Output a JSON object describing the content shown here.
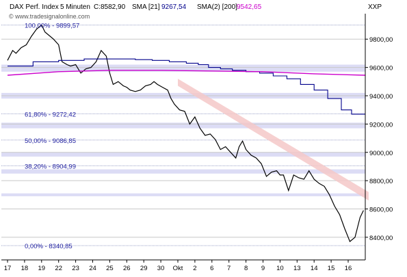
{
  "header": {
    "instrument": "DAX Perf. Index",
    "interval": "5 Minuten",
    "close_label": "C:8582,90",
    "sma1_label": "SMA [21]",
    "sma1_value": "9267,54",
    "sma2_label": "SMA(2) [200]",
    "sma2_value": "9542,65",
    "right_label": "XXP"
  },
  "watermark": "© www.tradesignalonline.com",
  "colors": {
    "price": "#000000",
    "sma21": "#00008b",
    "sma200": "#cc00cc",
    "band": "#dcdcf5",
    "trend_channel": "#f4c8c8",
    "fib_text": "#2020a0",
    "grid": "#c8c8c8"
  },
  "chart_data": {
    "type": "line",
    "title": "DAX Perf. Index",
    "ylim": [
      8240,
      9980
    ],
    "y_ticks": [
      8400,
      8600,
      8800,
      9000,
      9200,
      9400,
      9600,
      9800
    ],
    "y_tick_labels": [
      "8400,00",
      "8600,00",
      "8800,00",
      "9000,00",
      "9200,00",
      "9400,00",
      "9600,00",
      "9800,00"
    ],
    "x_tick_labels": [
      "17",
      "18",
      "19",
      "22",
      "23",
      "24",
      "25",
      "26",
      "29",
      "30",
      "Okt",
      "2",
      "6",
      "7",
      "8",
      "9",
      "10",
      "13",
      "14",
      "15",
      "16"
    ],
    "fib_levels": [
      {
        "label": "100,00% - 9899,57",
        "value": 9899.57
      },
      {
        "label": "61,80% - 9272,42",
        "value": 9272.42
      },
      {
        "label": "50,00% - 9086,85",
        "value": 9086.85
      },
      {
        "label": "38,20% - 8904,99",
        "value": 8904.99
      },
      {
        "label": "0,00% - 8340,85",
        "value": 8340.85
      }
    ],
    "support_bands": [
      {
        "from": 9570,
        "to": 9620
      },
      {
        "from": 9380,
        "to": 9420
      },
      {
        "from": 9170,
        "to": 9210
      },
      {
        "from": 8970,
        "to": 9000
      },
      {
        "from": 8850,
        "to": 8880
      },
      {
        "from": 8690,
        "to": 8710
      }
    ],
    "series": [
      {
        "name": "DAX Perf. Index",
        "x": [
          0,
          0.3,
          0.5,
          0.8,
          1.1,
          1.4,
          1.7,
          2.0,
          2.2,
          2.4,
          2.7,
          3.0,
          3.2,
          3.5,
          3.7,
          4.0,
          4.3,
          4.6,
          4.9,
          5.2,
          5.5,
          5.8,
          6.0,
          6.2,
          6.5,
          6.8,
          7.0,
          7.2,
          7.5,
          7.8,
          8.1,
          8.4,
          8.6,
          8.8,
          9.1,
          9.4,
          9.6,
          9.8,
          10.1,
          10.4,
          10.7,
          11.0,
          11.3,
          11.6,
          11.9,
          12.2,
          12.5,
          12.8,
          13.1,
          13.4,
          13.6,
          13.8,
          14.0,
          14.3,
          14.6,
          14.9,
          15.2,
          15.5,
          15.8,
          16.0,
          16.2,
          16.5,
          16.8,
          17.1,
          17.4,
          17.7,
          18.0,
          18.3,
          18.6,
          18.9,
          19.2,
          19.5,
          19.8,
          20.1,
          20.4,
          20.7,
          20.9
        ],
        "y": [
          9650,
          9720,
          9700,
          9740,
          9760,
          9820,
          9870,
          9900,
          9850,
          9830,
          9800,
          9760,
          9640,
          9620,
          9610,
          9620,
          9560,
          9590,
          9600,
          9640,
          9720,
          9680,
          9560,
          9480,
          9500,
          9470,
          9460,
          9440,
          9430,
          9440,
          9470,
          9480,
          9500,
          9480,
          9460,
          9440,
          9380,
          9340,
          9300,
          9290,
          9200,
          9250,
          9170,
          9120,
          9130,
          9090,
          9020,
          9040,
          9000,
          8960,
          9040,
          9080,
          9020,
          8980,
          8960,
          8920,
          8830,
          8860,
          8870,
          8840,
          8840,
          8730,
          8840,
          8820,
          8810,
          8870,
          8810,
          8780,
          8760,
          8700,
          8620,
          8560,
          8460,
          8370,
          8400,
          8540,
          8590
        ]
      },
      {
        "name": "SMA [21]",
        "x": [
          0,
          1.5,
          3,
          4.5,
          6,
          7.5,
          8.5,
          9.5,
          10.5,
          11.2,
          11.8,
          12.5,
          13.2,
          14,
          14.8,
          15.6,
          16.4,
          17.2,
          18,
          18.8,
          19.6,
          20.2,
          21
        ],
        "y": [
          9610,
          9640,
          9650,
          9660,
          9660,
          9655,
          9650,
          9640,
          9630,
          9620,
          9600,
          9590,
          9580,
          9570,
          9560,
          9540,
          9520,
          9480,
          9440,
          9380,
          9300,
          9270,
          9270
        ]
      },
      {
        "name": "SMA(2) [200]",
        "x": [
          0,
          3,
          6,
          9,
          12,
          15,
          18,
          21
        ],
        "y": [
          9545,
          9570,
          9580,
          9580,
          9575,
          9570,
          9555,
          9545
        ]
      }
    ]
  }
}
